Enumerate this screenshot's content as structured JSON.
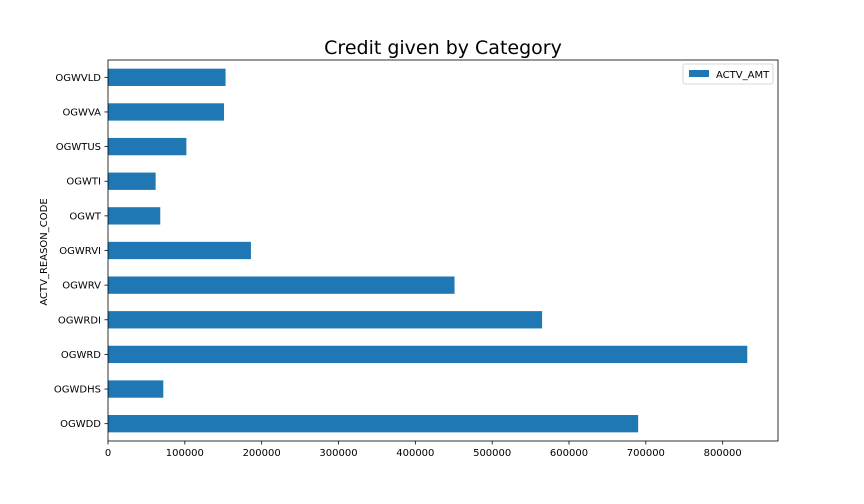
{
  "chart_data": {
    "type": "bar",
    "orientation": "horizontal",
    "title": "Credit given by Category",
    "xlabel": "",
    "ylabel": "ACTV_REASON_CODE",
    "categories": [
      "OGWDD",
      "OGWDHS",
      "OGWRD",
      "OGWRDI",
      "OGWRV",
      "OGWRVI",
      "OGWT",
      "OGWTI",
      "OGWTUS",
      "OGWVA",
      "OGWVLD"
    ],
    "series": [
      {
        "name": "ACTV_AMT",
        "color": "#1f77b4",
        "values": [
          690000,
          72000,
          832000,
          565000,
          451000,
          186000,
          68000,
          62000,
          102000,
          151000,
          153000
        ]
      }
    ],
    "xlim": [
      0,
      872000
    ],
    "xticks": [
      0,
      100000,
      200000,
      300000,
      400000,
      500000,
      600000,
      700000,
      800000
    ],
    "xtick_labels": [
      "0",
      "100000",
      "200000",
      "300000",
      "400000",
      "500000",
      "600000",
      "700000",
      "800000"
    ],
    "legend_position": "top-right",
    "grid": false
  }
}
